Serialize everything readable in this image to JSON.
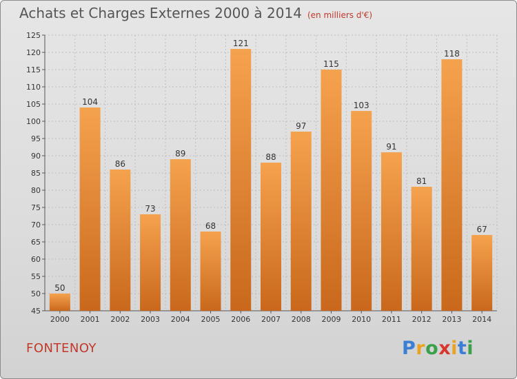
{
  "chart": {
    "title": "Achats et Charges Externes 2000 à 2014",
    "subtitle": "(en milliers d'€)",
    "location": "FONTENOY",
    "logo": {
      "letters": [
        "P",
        "r",
        "o",
        "x",
        "i",
        "t",
        "i"
      ],
      "colors": [
        "#3a7fd4",
        "#e8a323",
        "#3aa04a",
        "#d9372e",
        "#e8a323",
        "#3a7fd4",
        "#3aa04a"
      ]
    }
  },
  "chart_data": {
    "type": "bar",
    "categories": [
      "2000",
      "2001",
      "2002",
      "2003",
      "2004",
      "2005",
      "2006",
      "2007",
      "2008",
      "2009",
      "2010",
      "2011",
      "2012",
      "2013",
      "2014"
    ],
    "values": [
      50,
      104,
      86,
      73,
      89,
      68,
      121,
      88,
      97,
      115,
      103,
      91,
      81,
      118,
      67
    ],
    "ylim": [
      45,
      125
    ],
    "yticks": [
      45,
      50,
      55,
      60,
      65,
      70,
      75,
      80,
      85,
      90,
      95,
      100,
      105,
      110,
      115,
      120,
      125
    ],
    "bar_color_top": "#f5a24e",
    "bar_color_bottom": "#c9681c",
    "grid": true
  }
}
